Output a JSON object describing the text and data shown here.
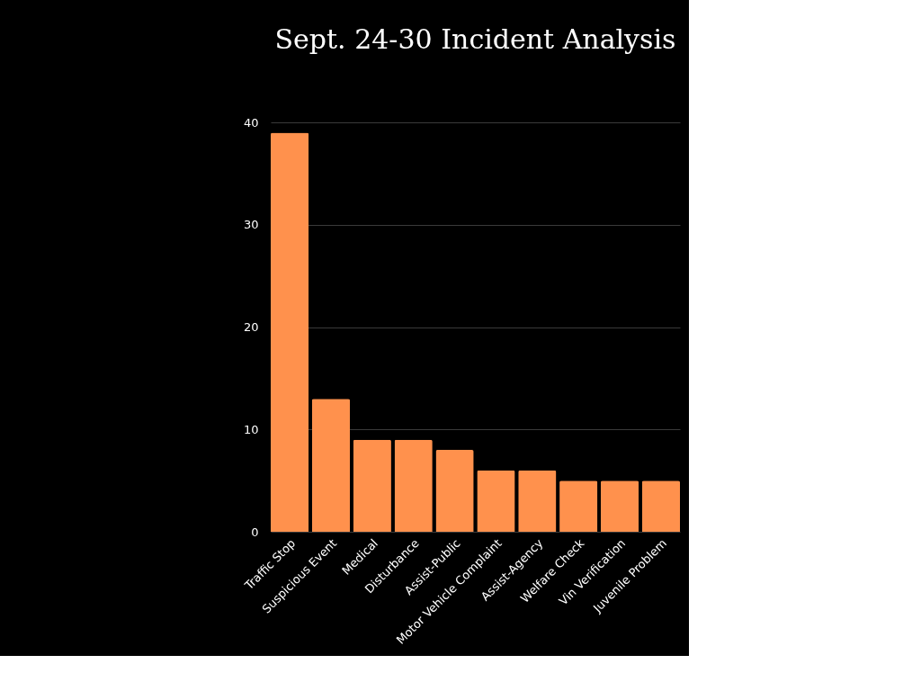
{
  "chart_data": {
    "type": "bar",
    "title": "Sept. 24-30 Incident Analysis",
    "categories": [
      "Traffic Stop",
      "Suspicious Event",
      "Medical",
      "Disturbance",
      "Assist-Public",
      "Motor Vehicle Complaint",
      "Assist-Agency",
      "Welfare Check",
      "Vin Verification",
      "Juvenile Problem"
    ],
    "values": [
      39,
      13,
      9,
      9,
      8,
      6,
      6,
      5,
      5,
      5
    ],
    "color": "#ff914d",
    "ylim": [
      0,
      40
    ],
    "yticks": [
      0,
      10,
      20,
      30,
      40
    ],
    "grid": "y"
  }
}
